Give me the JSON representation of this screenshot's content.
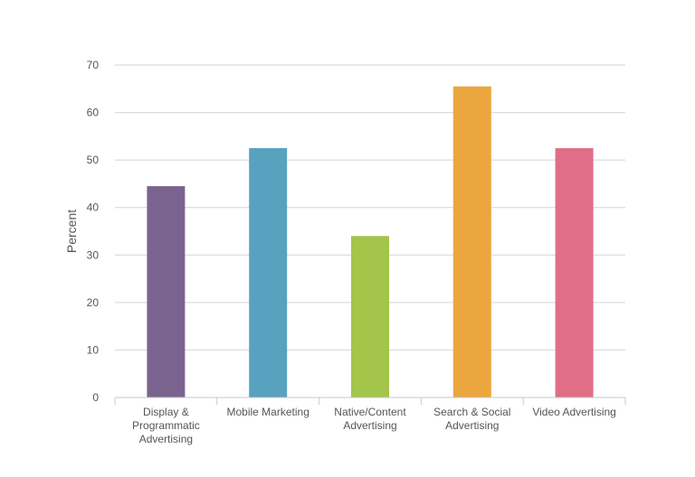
{
  "chart_data": {
    "type": "bar",
    "title": "",
    "xlabel": "",
    "ylabel": "Percent",
    "ylim": [
      0,
      70
    ],
    "yticks": [
      0,
      10,
      20,
      30,
      40,
      50,
      60,
      70
    ],
    "grid": true,
    "legend": "none",
    "categories": [
      "Display & Programmatic Advertising",
      "Mobile Marketing",
      "Native/Content Advertising",
      "Search & Social Advertising",
      "Video Advertising"
    ],
    "category_label_lines": [
      [
        "Display &",
        "Programmatic",
        "Advertising"
      ],
      [
        "Mobile Marketing"
      ],
      [
        "Native/Content",
        "Advertising"
      ],
      [
        "Search & Social",
        "Advertising"
      ],
      [
        "Video Advertising"
      ]
    ],
    "values": [
      44.5,
      52.5,
      34,
      65.5,
      52.5
    ],
    "colors": [
      "#7b638f",
      "#58a2c0",
      "#a3c54a",
      "#eba63e",
      "#e06e87"
    ]
  }
}
